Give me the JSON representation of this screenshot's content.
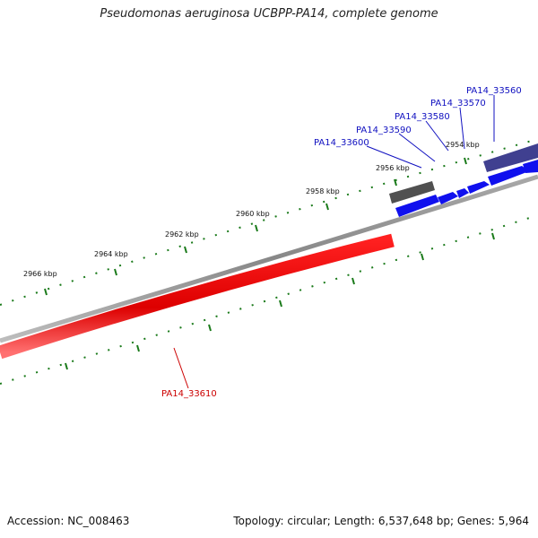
{
  "title": "Pseudomonas aeruginosa UCBPP-PA14, complete genome",
  "accession": "Accession: NC_008463",
  "summary": "Topology: circular; Length: 6,537,648 bp; Genes: 5,964",
  "colors": {
    "backbone": "#808080",
    "forward_gene": "#1010ee",
    "reverse_gene": "#ee1010",
    "rna_gene": "#505050",
    "highlight_gene": "#404090",
    "tick": "#1a7a1a"
  },
  "ticks": [
    {
      "label": "2954 kbp"
    },
    {
      "label": "2956 kbp"
    },
    {
      "label": "2958 kbp"
    },
    {
      "label": "2960 kbp"
    },
    {
      "label": "2962 kbp"
    },
    {
      "label": "2964 kbp"
    },
    {
      "label": "2966 kbp"
    }
  ],
  "genes": [
    {
      "name": "PA14_33560",
      "strand": "forward"
    },
    {
      "name": "PA14_33570",
      "strand": "forward"
    },
    {
      "name": "PA14_33580",
      "strand": "forward"
    },
    {
      "name": "PA14_33590",
      "strand": "forward"
    },
    {
      "name": "PA14_33600",
      "strand": "forward"
    },
    {
      "name": "PA14_33610",
      "strand": "reverse"
    }
  ]
}
